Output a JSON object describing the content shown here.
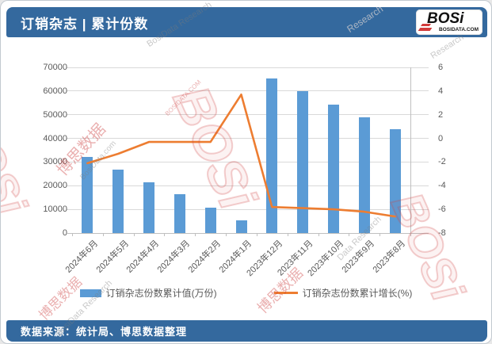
{
  "header": {
    "title": "订销杂志 | 累计份数",
    "logo": {
      "text": "BOSi",
      "subtext": "BOSIDATA.COM"
    }
  },
  "footer": {
    "source": "数据来源：统计局、博思数据整理"
  },
  "colors": {
    "header_bg": "#34699E",
    "bar": "#5B9BD5",
    "line": "#ED7D31",
    "grid": "#D9D9D9",
    "axis_line": "#BFBFBF",
    "axis_text": "#595959",
    "logo_red": "#D23B3B"
  },
  "watermarks": [
    "BosiData Research",
    "Research",
    "BOSi",
    "博思数据",
    "BosiData.com",
    "BOSi",
    "博思数据",
    "BOSi",
    "博思数据",
    "BOSIDATA.COM",
    "Data Research",
    "BosiData Research",
    "Research"
  ],
  "chart_data": {
    "type": "bar",
    "subtype": "combo-bar-line",
    "title": "订销杂志 | 累计份数",
    "categories": [
      "2024年6月",
      "2024年5月",
      "2024年4月",
      "2024年3月",
      "2024年2月",
      "2024年1月",
      "2023年12月",
      "2023年11月",
      "2023年10月",
      "2023年9月",
      "2023年8月"
    ],
    "series": [
      {
        "name": "订销杂志份数累计值(万份)",
        "type": "bar",
        "axis": "left",
        "color": "#5B9BD5",
        "values": [
          32300,
          26900,
          21600,
          16400,
          10600,
          5400,
          65400,
          59800,
          54400,
          49000,
          43800
        ]
      },
      {
        "name": "订销杂志份数累计增长(%)",
        "type": "line",
        "axis": "right",
        "color": "#ED7D31",
        "values": [
          -2.1,
          -1.3,
          -0.3,
          -0.3,
          -0.3,
          3.7,
          -5.8,
          -5.9,
          -6.0,
          -6.2,
          -6.6
        ]
      }
    ],
    "left_axis": {
      "min": 0,
      "max": 70000,
      "step": 10000,
      "ticks": [
        "70000",
        "60000",
        "50000",
        "40000",
        "30000",
        "20000",
        "10000",
        "0"
      ]
    },
    "right_axis": {
      "min": -8,
      "max": 6,
      "step": 2,
      "ticks": [
        "6",
        "4",
        "2",
        "0",
        "-2",
        "-4",
        "-6",
        "-8"
      ]
    },
    "grid": true,
    "legend_position": "bottom",
    "xlabel": "",
    "ylabel": ""
  }
}
